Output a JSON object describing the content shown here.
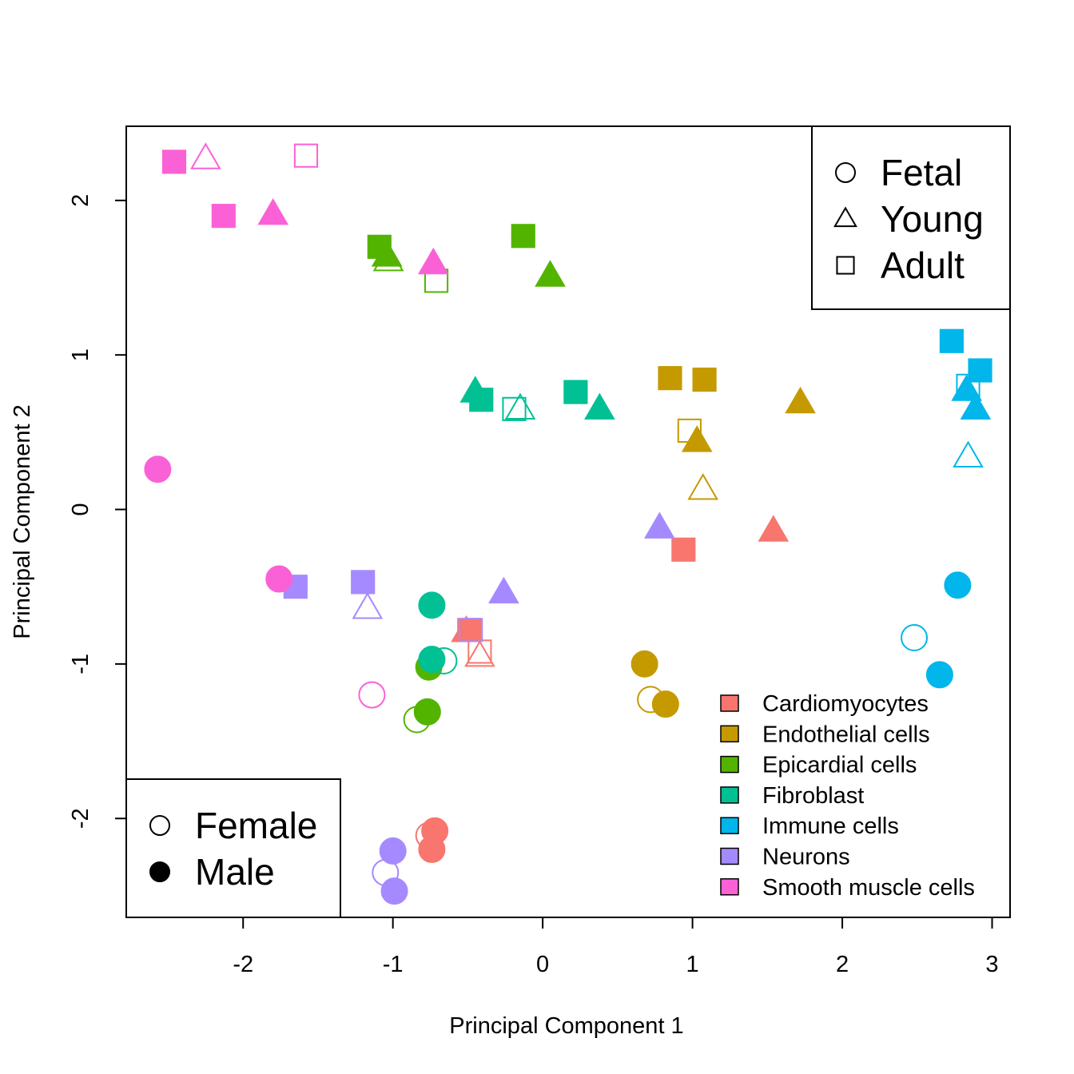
{
  "chart_data": {
    "type": "scatter",
    "title": "",
    "xlabel": "Principal Component 1",
    "ylabel": "Principal Component 2",
    "xlim": [
      -2.78,
      3.12
    ],
    "ylim": [
      -2.64,
      2.48
    ],
    "x_ticks": [
      -2,
      -1,
      0,
      1,
      2,
      3
    ],
    "y_ticks": [
      -2,
      -1,
      0,
      1,
      2
    ],
    "x_tick_labels": [
      "-2",
      "-1",
      "0",
      "1",
      "2",
      "3"
    ],
    "y_tick_labels": [
      "-2",
      "-1",
      "0",
      "1",
      "2"
    ],
    "grid": false,
    "encoding": {
      "color": "cell type",
      "shape": "stage (circle = Fetal, triangle = Young, square = Adult)",
      "fill": "sex (open = Female, filled = Male)"
    },
    "legends": {
      "stage": {
        "position": "top-right",
        "entries": [
          {
            "label": "Fetal",
            "shape": "circle"
          },
          {
            "label": "Young",
            "shape": "triangle"
          },
          {
            "label": "Adult",
            "shape": "square"
          }
        ]
      },
      "sex": {
        "position": "bottom-left",
        "entries": [
          {
            "label": "Female",
            "filled": false
          },
          {
            "label": "Male",
            "filled": true
          }
        ]
      },
      "cell_type": {
        "position": "bottom-right",
        "entries": [
          {
            "label": "Cardiomyocytes",
            "color": "#F8766D"
          },
          {
            "label": "Endothelial cells",
            "color": "#C49A00"
          },
          {
            "label": "Epicardial cells",
            "color": "#53B400"
          },
          {
            "label": "Fibroblast",
            "color": "#00C094"
          },
          {
            "label": "Immune cells",
            "color": "#00B6EB"
          },
          {
            "label": "Neurons",
            "color": "#A58AFF"
          },
          {
            "label": "Smooth muscle cells",
            "color": "#FB61D7"
          }
        ]
      }
    },
    "series": [
      {
        "name": "Cardiomyocytes",
        "color": "#F8766D",
        "points": [
          {
            "x": 0.94,
            "y": -0.26,
            "stage": "Adult",
            "sex": "Male"
          },
          {
            "x": -0.49,
            "y": -0.78,
            "stage": "Adult",
            "sex": "Male"
          },
          {
            "x": 1.54,
            "y": -0.14,
            "stage": "Young",
            "sex": "Male"
          },
          {
            "x": -0.51,
            "y": -0.79,
            "stage": "Young",
            "sex": "Male"
          },
          {
            "x": -0.42,
            "y": -0.95,
            "stage": "Young",
            "sex": "Female"
          },
          {
            "x": -0.42,
            "y": -0.92,
            "stage": "Adult",
            "sex": "Female"
          },
          {
            "x": -0.76,
            "y": -2.11,
            "stage": "Fetal",
            "sex": "Female"
          },
          {
            "x": -0.72,
            "y": -2.08,
            "stage": "Fetal",
            "sex": "Male"
          },
          {
            "x": -0.74,
            "y": -2.2,
            "stage": "Fetal",
            "sex": "Male"
          }
        ]
      },
      {
        "name": "Endothelial cells",
        "color": "#C49A00",
        "points": [
          {
            "x": 0.85,
            "y": 0.85,
            "stage": "Adult",
            "sex": "Male"
          },
          {
            "x": 1.08,
            "y": 0.84,
            "stage": "Adult",
            "sex": "Male"
          },
          {
            "x": 1.72,
            "y": 0.69,
            "stage": "Young",
            "sex": "Male"
          },
          {
            "x": 0.98,
            "y": 0.51,
            "stage": "Adult",
            "sex": "Female"
          },
          {
            "x": 1.03,
            "y": 0.44,
            "stage": "Young",
            "sex": "Male"
          },
          {
            "x": 1.07,
            "y": 0.13,
            "stage": "Young",
            "sex": "Female"
          },
          {
            "x": 0.68,
            "y": -1.0,
            "stage": "Fetal",
            "sex": "Male"
          },
          {
            "x": 0.72,
            "y": -1.23,
            "stage": "Fetal",
            "sex": "Female"
          },
          {
            "x": 0.82,
            "y": -1.26,
            "stage": "Fetal",
            "sex": "Male"
          }
        ]
      },
      {
        "name": "Epicardial cells",
        "color": "#53B400",
        "points": [
          {
            "x": -1.09,
            "y": 1.7,
            "stage": "Adult",
            "sex": "Male"
          },
          {
            "x": -1.04,
            "y": 1.64,
            "stage": "Young",
            "sex": "Male"
          },
          {
            "x": -1.03,
            "y": 1.61,
            "stage": "Young",
            "sex": "Female"
          },
          {
            "x": -0.71,
            "y": 1.48,
            "stage": "Adult",
            "sex": "Female"
          },
          {
            "x": -0.13,
            "y": 1.77,
            "stage": "Adult",
            "sex": "Male"
          },
          {
            "x": 0.05,
            "y": 1.51,
            "stage": "Young",
            "sex": "Male"
          },
          {
            "x": -0.76,
            "y": -1.02,
            "stage": "Fetal",
            "sex": "Male"
          },
          {
            "x": -0.77,
            "y": -1.31,
            "stage": "Fetal",
            "sex": "Male"
          },
          {
            "x": -0.84,
            "y": -1.36,
            "stage": "Fetal",
            "sex": "Female"
          }
        ]
      },
      {
        "name": "Fibroblast",
        "color": "#00C094",
        "points": [
          {
            "x": -0.45,
            "y": 0.76,
            "stage": "Young",
            "sex": "Male"
          },
          {
            "x": -0.41,
            "y": 0.71,
            "stage": "Adult",
            "sex": "Male"
          },
          {
            "x": -0.19,
            "y": 0.65,
            "stage": "Adult",
            "sex": "Female"
          },
          {
            "x": -0.15,
            "y": 0.65,
            "stage": "Young",
            "sex": "Female"
          },
          {
            "x": 0.22,
            "y": 0.76,
            "stage": "Adult",
            "sex": "Male"
          },
          {
            "x": 0.38,
            "y": 0.65,
            "stage": "Young",
            "sex": "Male"
          },
          {
            "x": -0.74,
            "y": -0.62,
            "stage": "Fetal",
            "sex": "Male"
          },
          {
            "x": -0.66,
            "y": -0.98,
            "stage": "Fetal",
            "sex": "Female"
          },
          {
            "x": -0.74,
            "y": -0.97,
            "stage": "Fetal",
            "sex": "Male"
          }
        ]
      },
      {
        "name": "Immune cells",
        "color": "#00B6EB",
        "points": [
          {
            "x": 2.73,
            "y": 1.09,
            "stage": "Adult",
            "sex": "Male"
          },
          {
            "x": 2.92,
            "y": 0.9,
            "stage": "Adult",
            "sex": "Male"
          },
          {
            "x": 2.84,
            "y": 0.8,
            "stage": "Adult",
            "sex": "Female"
          },
          {
            "x": 2.83,
            "y": 0.77,
            "stage": "Young",
            "sex": "Male"
          },
          {
            "x": 2.89,
            "y": 0.65,
            "stage": "Young",
            "sex": "Male"
          },
          {
            "x": 2.84,
            "y": 0.34,
            "stage": "Young",
            "sex": "Female"
          },
          {
            "x": 2.77,
            "y": -0.49,
            "stage": "Fetal",
            "sex": "Male"
          },
          {
            "x": 2.48,
            "y": -0.83,
            "stage": "Fetal",
            "sex": "Female"
          },
          {
            "x": 2.65,
            "y": -1.07,
            "stage": "Fetal",
            "sex": "Male"
          }
        ]
      },
      {
        "name": "Neurons",
        "color": "#A58AFF",
        "points": [
          {
            "x": 0.78,
            "y": -0.12,
            "stage": "Young",
            "sex": "Male"
          },
          {
            "x": -1.65,
            "y": -0.5,
            "stage": "Adult",
            "sex": "Male"
          },
          {
            "x": -1.2,
            "y": -0.47,
            "stage": "Adult",
            "sex": "Male"
          },
          {
            "x": -1.17,
            "y": -0.64,
            "stage": "Young",
            "sex": "Female"
          },
          {
            "x": -0.26,
            "y": -0.54,
            "stage": "Young",
            "sex": "Male"
          },
          {
            "x": -0.48,
            "y": -0.78,
            "stage": "Adult",
            "sex": "Female"
          },
          {
            "x": -1.0,
            "y": -2.21,
            "stage": "Fetal",
            "sex": "Male"
          },
          {
            "x": -1.05,
            "y": -2.35,
            "stage": "Fetal",
            "sex": "Female"
          },
          {
            "x": -0.99,
            "y": -2.47,
            "stage": "Fetal",
            "sex": "Male"
          }
        ]
      },
      {
        "name": "Smooth muscle cells",
        "color": "#FB61D7",
        "points": [
          {
            "x": -2.46,
            "y": 2.25,
            "stage": "Adult",
            "sex": "Male"
          },
          {
            "x": -2.25,
            "y": 2.27,
            "stage": "Young",
            "sex": "Female"
          },
          {
            "x": -1.58,
            "y": 2.29,
            "stage": "Adult",
            "sex": "Female"
          },
          {
            "x": -2.13,
            "y": 1.9,
            "stage": "Adult",
            "sex": "Male"
          },
          {
            "x": -1.8,
            "y": 1.91,
            "stage": "Young",
            "sex": "Male"
          },
          {
            "x": -0.73,
            "y": 1.59,
            "stage": "Young",
            "sex": "Male"
          },
          {
            "x": -2.57,
            "y": 0.26,
            "stage": "Fetal",
            "sex": "Male"
          },
          {
            "x": -1.76,
            "y": -0.45,
            "stage": "Fetal",
            "sex": "Male"
          },
          {
            "x": -1.14,
            "y": -1.2,
            "stage": "Fetal",
            "sex": "Female"
          }
        ]
      }
    ]
  }
}
